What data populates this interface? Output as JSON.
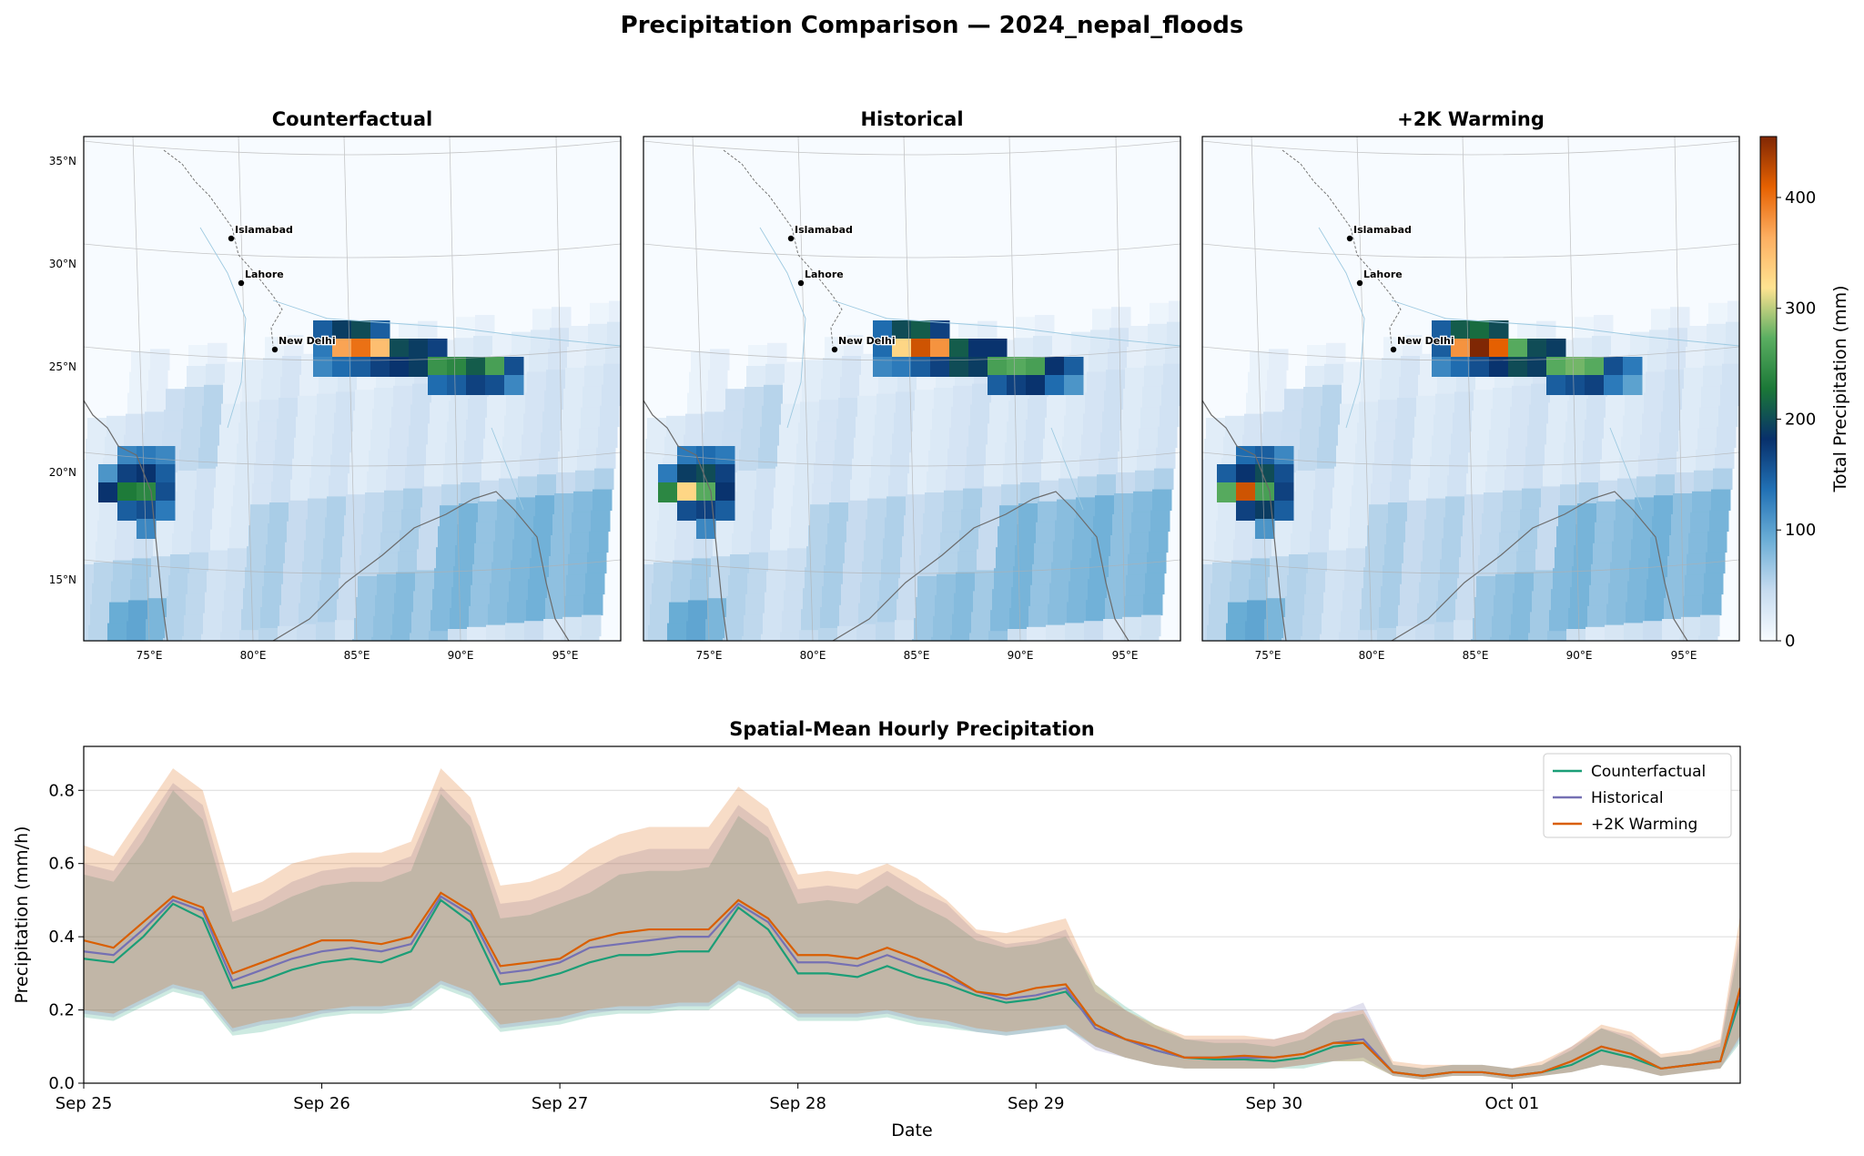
{
  "figure": {
    "title": "Precipitation Comparison — 2024_nepal_floods"
  },
  "maps": {
    "panels": [
      {
        "title": "Counterfactual"
      },
      {
        "title": "Historical"
      },
      {
        "title": "+2K Warming"
      }
    ],
    "lat_ticks": [
      "35°N",
      "30°N",
      "25°N",
      "20°N",
      "15°N"
    ],
    "lon_ticks": [
      "75°E",
      "80°E",
      "85°E",
      "90°E",
      "95°E"
    ],
    "cities": [
      {
        "name": "Islamabad"
      },
      {
        "name": "Lahore"
      },
      {
        "name": "New Delhi"
      }
    ],
    "colorbar": {
      "label": "Total Precipitation (mm)",
      "ticks": [
        "0",
        "100",
        "200",
        "300",
        "400"
      ],
      "tick_values": [
        0,
        100,
        200,
        300,
        400
      ],
      "max": 455,
      "stops": [
        "#f7fbff",
        "#c6dbef",
        "#6baed6",
        "#2171b5",
        "#08306b",
        "#1b7837",
        "#5aae61",
        "#fee391",
        "#fdae61",
        "#e66101",
        "#7f2704"
      ]
    }
  },
  "chart_data": {
    "type": "line",
    "title": "Spatial-Mean Hourly Precipitation",
    "xlabel": "Date",
    "ylabel": "Precipitation (mm/h)",
    "x_range": [
      "2024-09-25 00:00",
      "2024-10-01 23:00"
    ],
    "x_ticks": [
      "Sep 25",
      "Sep 26",
      "Sep 27",
      "Sep 28",
      "Sep 29",
      "Sep 30",
      "Oct 01"
    ],
    "y_ticks": [
      "0.0",
      "0.2",
      "0.4",
      "0.6",
      "0.8"
    ],
    "ylim": [
      0,
      0.92
    ],
    "grid": true,
    "legend_position": "top-right",
    "x_hours": [
      0,
      3,
      6,
      9,
      12,
      15,
      18,
      21,
      24,
      27,
      30,
      33,
      36,
      39,
      42,
      45,
      48,
      51,
      54,
      57,
      60,
      63,
      66,
      69,
      72,
      75,
      78,
      81,
      84,
      87,
      90,
      93,
      96,
      99,
      102,
      105,
      108,
      111,
      114,
      117,
      120,
      123,
      126,
      129,
      132,
      135,
      138,
      141,
      144,
      147,
      150,
      153,
      156,
      159,
      162,
      165,
      167
    ],
    "series": [
      {
        "name": "Counterfactual",
        "color": "#1b9e77",
        "mean": [
          0.34,
          0.33,
          0.4,
          0.49,
          0.45,
          0.26,
          0.28,
          0.31,
          0.33,
          0.34,
          0.33,
          0.36,
          0.5,
          0.44,
          0.27,
          0.28,
          0.3,
          0.33,
          0.35,
          0.35,
          0.36,
          0.36,
          0.48,
          0.42,
          0.3,
          0.3,
          0.29,
          0.32,
          0.29,
          0.27,
          0.24,
          0.22,
          0.23,
          0.25,
          0.16,
          0.12,
          0.09,
          0.07,
          0.065,
          0.065,
          0.06,
          0.07,
          0.1,
          0.11,
          0.03,
          0.02,
          0.03,
          0.03,
          0.02,
          0.03,
          0.05,
          0.09,
          0.07,
          0.04,
          0.05,
          0.06,
          0.23
        ],
        "upper": [
          0.57,
          0.55,
          0.66,
          0.8,
          0.72,
          0.44,
          0.47,
          0.51,
          0.54,
          0.55,
          0.55,
          0.58,
          0.79,
          0.7,
          0.45,
          0.46,
          0.49,
          0.52,
          0.57,
          0.58,
          0.58,
          0.59,
          0.73,
          0.67,
          0.49,
          0.5,
          0.49,
          0.54,
          0.49,
          0.45,
          0.39,
          0.37,
          0.38,
          0.4,
          0.27,
          0.21,
          0.16,
          0.12,
          0.11,
          0.11,
          0.1,
          0.12,
          0.17,
          0.19,
          0.05,
          0.04,
          0.05,
          0.05,
          0.04,
          0.05,
          0.09,
          0.15,
          0.12,
          0.07,
          0.08,
          0.1,
          0.39
        ],
        "lower": [
          0.18,
          0.17,
          0.21,
          0.25,
          0.23,
          0.13,
          0.14,
          0.16,
          0.18,
          0.19,
          0.19,
          0.2,
          0.26,
          0.23,
          0.14,
          0.15,
          0.16,
          0.18,
          0.19,
          0.19,
          0.2,
          0.2,
          0.26,
          0.23,
          0.17,
          0.17,
          0.17,
          0.18,
          0.16,
          0.15,
          0.14,
          0.13,
          0.14,
          0.15,
          0.1,
          0.07,
          0.05,
          0.04,
          0.04,
          0.04,
          0.04,
          0.04,
          0.06,
          0.06,
          0.02,
          0.01,
          0.02,
          0.02,
          0.01,
          0.02,
          0.03,
          0.05,
          0.04,
          0.02,
          0.03,
          0.04,
          0.11
        ]
      },
      {
        "name": "Historical",
        "color": "#7570b3",
        "mean": [
          0.36,
          0.35,
          0.42,
          0.5,
          0.47,
          0.28,
          0.31,
          0.34,
          0.36,
          0.37,
          0.36,
          0.38,
          0.51,
          0.46,
          0.3,
          0.31,
          0.33,
          0.37,
          0.38,
          0.39,
          0.4,
          0.4,
          0.49,
          0.44,
          0.33,
          0.33,
          0.32,
          0.35,
          0.32,
          0.29,
          0.25,
          0.23,
          0.24,
          0.26,
          0.15,
          0.12,
          0.09,
          0.07,
          0.07,
          0.07,
          0.07,
          0.08,
          0.11,
          0.12,
          0.03,
          0.02,
          0.03,
          0.03,
          0.02,
          0.03,
          0.06,
          0.1,
          0.08,
          0.04,
          0.05,
          0.06,
          0.25
        ],
        "upper": [
          0.6,
          0.58,
          0.7,
          0.82,
          0.76,
          0.47,
          0.5,
          0.55,
          0.58,
          0.59,
          0.59,
          0.62,
          0.81,
          0.73,
          0.49,
          0.5,
          0.53,
          0.58,
          0.62,
          0.64,
          0.64,
          0.64,
          0.76,
          0.7,
          0.53,
          0.54,
          0.53,
          0.58,
          0.53,
          0.49,
          0.41,
          0.38,
          0.39,
          0.42,
          0.25,
          0.2,
          0.15,
          0.12,
          0.12,
          0.12,
          0.12,
          0.14,
          0.19,
          0.22,
          0.05,
          0.04,
          0.05,
          0.05,
          0.04,
          0.05,
          0.1,
          0.15,
          0.13,
          0.07,
          0.08,
          0.11,
          0.42
        ],
        "lower": [
          0.19,
          0.18,
          0.22,
          0.26,
          0.24,
          0.14,
          0.16,
          0.17,
          0.19,
          0.2,
          0.2,
          0.21,
          0.27,
          0.24,
          0.15,
          0.16,
          0.17,
          0.19,
          0.2,
          0.2,
          0.21,
          0.21,
          0.27,
          0.24,
          0.18,
          0.18,
          0.18,
          0.19,
          0.17,
          0.16,
          0.14,
          0.13,
          0.14,
          0.15,
          0.09,
          0.07,
          0.05,
          0.04,
          0.04,
          0.04,
          0.04,
          0.05,
          0.06,
          0.07,
          0.02,
          0.01,
          0.02,
          0.02,
          0.01,
          0.02,
          0.03,
          0.05,
          0.04,
          0.02,
          0.03,
          0.04,
          0.12
        ]
      },
      {
        "name": "+2K Warming",
        "color": "#d95f02",
        "mean": [
          0.39,
          0.37,
          0.44,
          0.51,
          0.48,
          0.3,
          0.33,
          0.36,
          0.39,
          0.39,
          0.38,
          0.4,
          0.52,
          0.47,
          0.32,
          0.33,
          0.34,
          0.39,
          0.41,
          0.42,
          0.42,
          0.42,
          0.5,
          0.45,
          0.35,
          0.35,
          0.34,
          0.37,
          0.34,
          0.3,
          0.25,
          0.24,
          0.26,
          0.27,
          0.16,
          0.12,
          0.1,
          0.07,
          0.07,
          0.075,
          0.07,
          0.08,
          0.11,
          0.11,
          0.03,
          0.02,
          0.03,
          0.03,
          0.02,
          0.03,
          0.06,
          0.1,
          0.08,
          0.04,
          0.05,
          0.06,
          0.26
        ],
        "upper": [
          0.65,
          0.62,
          0.74,
          0.86,
          0.8,
          0.52,
          0.55,
          0.6,
          0.62,
          0.63,
          0.63,
          0.66,
          0.86,
          0.78,
          0.54,
          0.55,
          0.58,
          0.64,
          0.68,
          0.7,
          0.7,
          0.7,
          0.81,
          0.75,
          0.57,
          0.58,
          0.57,
          0.6,
          0.56,
          0.5,
          0.42,
          0.41,
          0.43,
          0.45,
          0.27,
          0.2,
          0.16,
          0.13,
          0.13,
          0.13,
          0.12,
          0.14,
          0.19,
          0.2,
          0.06,
          0.05,
          0.05,
          0.05,
          0.04,
          0.06,
          0.1,
          0.16,
          0.14,
          0.08,
          0.09,
          0.12,
          0.46
        ],
        "lower": [
          0.2,
          0.19,
          0.23,
          0.27,
          0.25,
          0.15,
          0.17,
          0.18,
          0.2,
          0.21,
          0.21,
          0.22,
          0.28,
          0.25,
          0.16,
          0.17,
          0.18,
          0.2,
          0.21,
          0.21,
          0.22,
          0.22,
          0.28,
          0.25,
          0.19,
          0.19,
          0.19,
          0.2,
          0.18,
          0.17,
          0.15,
          0.14,
          0.15,
          0.16,
          0.1,
          0.07,
          0.05,
          0.04,
          0.04,
          0.04,
          0.04,
          0.05,
          0.06,
          0.06,
          0.02,
          0.01,
          0.02,
          0.02,
          0.01,
          0.02,
          0.03,
          0.05,
          0.04,
          0.02,
          0.03,
          0.04,
          0.13
        ]
      }
    ]
  }
}
